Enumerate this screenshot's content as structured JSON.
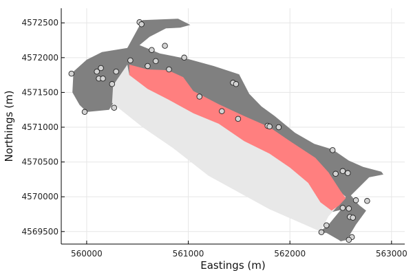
{
  "chart_data": {
    "type": "scatter",
    "title": "",
    "xlabel": "Eastings (m)",
    "ylabel": "Northings (m)",
    "xlim": [
      559750,
      563130
    ],
    "ylim": [
      4569320,
      4572710
    ],
    "xticks": [
      560000,
      561000,
      562000,
      563000
    ],
    "xtick_labels": [
      "560000",
      "561000",
      "562000",
      "563000"
    ],
    "yticks": [
      4569500,
      4570000,
      4570500,
      4571000,
      4571500,
      4572000,
      4572500
    ],
    "ytick_labels": [
      "4569500",
      "4570000",
      "4570500",
      "4571000",
      "4571500",
      "4572000",
      "4572500"
    ],
    "grid": true,
    "legend": "none",
    "colors": {
      "outer_region": "#808080",
      "light_region": "#e8e8e8",
      "red_band": "#ff7f7f",
      "points": "#d3d3d3"
    },
    "regions": [
      {
        "fill": "#808080",
        "polygon": [
          [
            560550,
            4572540
          ],
          [
            560900,
            4572560
          ],
          [
            561020,
            4572470
          ],
          [
            560920,
            4572430
          ],
          [
            560780,
            4572420
          ],
          [
            560620,
            4572300
          ],
          [
            560520,
            4572180
          ],
          [
            560720,
            4572060
          ],
          [
            561000,
            4571980
          ],
          [
            561250,
            4571880
          ],
          [
            561500,
            4571760
          ],
          [
            561600,
            4571480
          ],
          [
            561720,
            4571300
          ],
          [
            561850,
            4571160
          ],
          [
            562050,
            4570920
          ],
          [
            562240,
            4570760
          ],
          [
            562420,
            4570680
          ],
          [
            562580,
            4570520
          ],
          [
            562720,
            4570430
          ],
          [
            562900,
            4570360
          ],
          [
            562920,
            4570320
          ],
          [
            562780,
            4570280
          ],
          [
            562600,
            4570020
          ],
          [
            562680,
            4569880
          ],
          [
            562750,
            4569800
          ],
          [
            562650,
            4569600
          ],
          [
            562560,
            4569380
          ],
          [
            562500,
            4569360
          ],
          [
            562480,
            4569380
          ],
          [
            562360,
            4569480
          ],
          [
            562280,
            4569480
          ],
          [
            562380,
            4569600
          ],
          [
            562500,
            4569810
          ],
          [
            562410,
            4569780
          ],
          [
            562220,
            4569970
          ],
          [
            561900,
            4570200
          ],
          [
            561560,
            4570380
          ],
          [
            561050,
            4570800
          ],
          [
            560700,
            4571250
          ],
          [
            560560,
            4571550
          ],
          [
            560360,
            4571600
          ],
          [
            560260,
            4571340
          ],
          [
            560220,
            4571250
          ],
          [
            560000,
            4571220
          ],
          [
            559930,
            4571320
          ],
          [
            559860,
            4571500
          ],
          [
            559870,
            4571800
          ],
          [
            560000,
            4571970
          ],
          [
            560150,
            4572080
          ],
          [
            560400,
            4572140
          ]
        ]
      },
      {
        "fill": "#e8e8e8",
        "polygon": [
          [
            560400,
            4571900
          ],
          [
            560420,
            4571750
          ],
          [
            560800,
            4571500
          ],
          [
            561100,
            4571250
          ],
          [
            561450,
            4571000
          ],
          [
            561800,
            4570800
          ],
          [
            562050,
            4570550
          ],
          [
            562300,
            4570320
          ],
          [
            562550,
            4570000
          ],
          [
            562480,
            4569880
          ],
          [
            562380,
            4569720
          ],
          [
            562300,
            4569500
          ],
          [
            561800,
            4569820
          ],
          [
            561200,
            4570300
          ],
          [
            560850,
            4570700
          ],
          [
            560550,
            4571000
          ],
          [
            560250,
            4571350
          ],
          [
            560260,
            4571600
          ]
        ]
      },
      {
        "fill": "#ff7f7f",
        "polygon": [
          [
            560420,
            4571900
          ],
          [
            560600,
            4571830
          ],
          [
            560800,
            4571820
          ],
          [
            560950,
            4571720
          ],
          [
            561050,
            4571520
          ],
          [
            561300,
            4571330
          ],
          [
            561550,
            4571160
          ],
          [
            561800,
            4571000
          ],
          [
            562000,
            4570800
          ],
          [
            562250,
            4570560
          ],
          [
            562380,
            4570350
          ],
          [
            562500,
            4570080
          ],
          [
            562550,
            4569980
          ],
          [
            562480,
            4569870
          ],
          [
            562410,
            4569800
          ],
          [
            562300,
            4569920
          ],
          [
            562180,
            4570200
          ],
          [
            562000,
            4570420
          ],
          [
            561800,
            4570620
          ],
          [
            561550,
            4570800
          ],
          [
            561300,
            4571050
          ],
          [
            561050,
            4571200
          ],
          [
            560800,
            4571400
          ],
          [
            560600,
            4571550
          ],
          [
            560420,
            4571750
          ]
        ]
      }
    ],
    "series": [
      {
        "points": [
          [
            559850,
            4571770
          ],
          [
            559980,
            4571220
          ],
          [
            560100,
            4571800
          ],
          [
            560120,
            4571700
          ],
          [
            560140,
            4571850
          ],
          [
            560160,
            4571700
          ],
          [
            560250,
            4571620
          ],
          [
            560270,
            4571280
          ],
          [
            560290,
            4571800
          ],
          [
            560430,
            4571960
          ],
          [
            560520,
            4572510
          ],
          [
            560540,
            4572480
          ],
          [
            560600,
            4571880
          ],
          [
            560640,
            4572110
          ],
          [
            560680,
            4571950
          ],
          [
            560770,
            4572170
          ],
          [
            560810,
            4571830
          ],
          [
            560960,
            4572000
          ],
          [
            561110,
            4571440
          ],
          [
            561330,
            4571230
          ],
          [
            561440,
            4571640
          ],
          [
            561470,
            4571620
          ],
          [
            561490,
            4571120
          ],
          [
            561780,
            4571020
          ],
          [
            561800,
            4571010
          ],
          [
            561890,
            4571000
          ],
          [
            562420,
            4570670
          ],
          [
            562450,
            4570330
          ],
          [
            562520,
            4570370
          ],
          [
            562570,
            4570340
          ],
          [
            562520,
            4569840
          ],
          [
            562580,
            4569830
          ],
          [
            562590,
            4569710
          ],
          [
            562620,
            4569700
          ],
          [
            562650,
            4569950
          ],
          [
            562760,
            4569940
          ],
          [
            562610,
            4569420
          ],
          [
            562580,
            4569380
          ],
          [
            562360,
            4569590
          ],
          [
            562310,
            4569490
          ]
        ]
      }
    ]
  }
}
